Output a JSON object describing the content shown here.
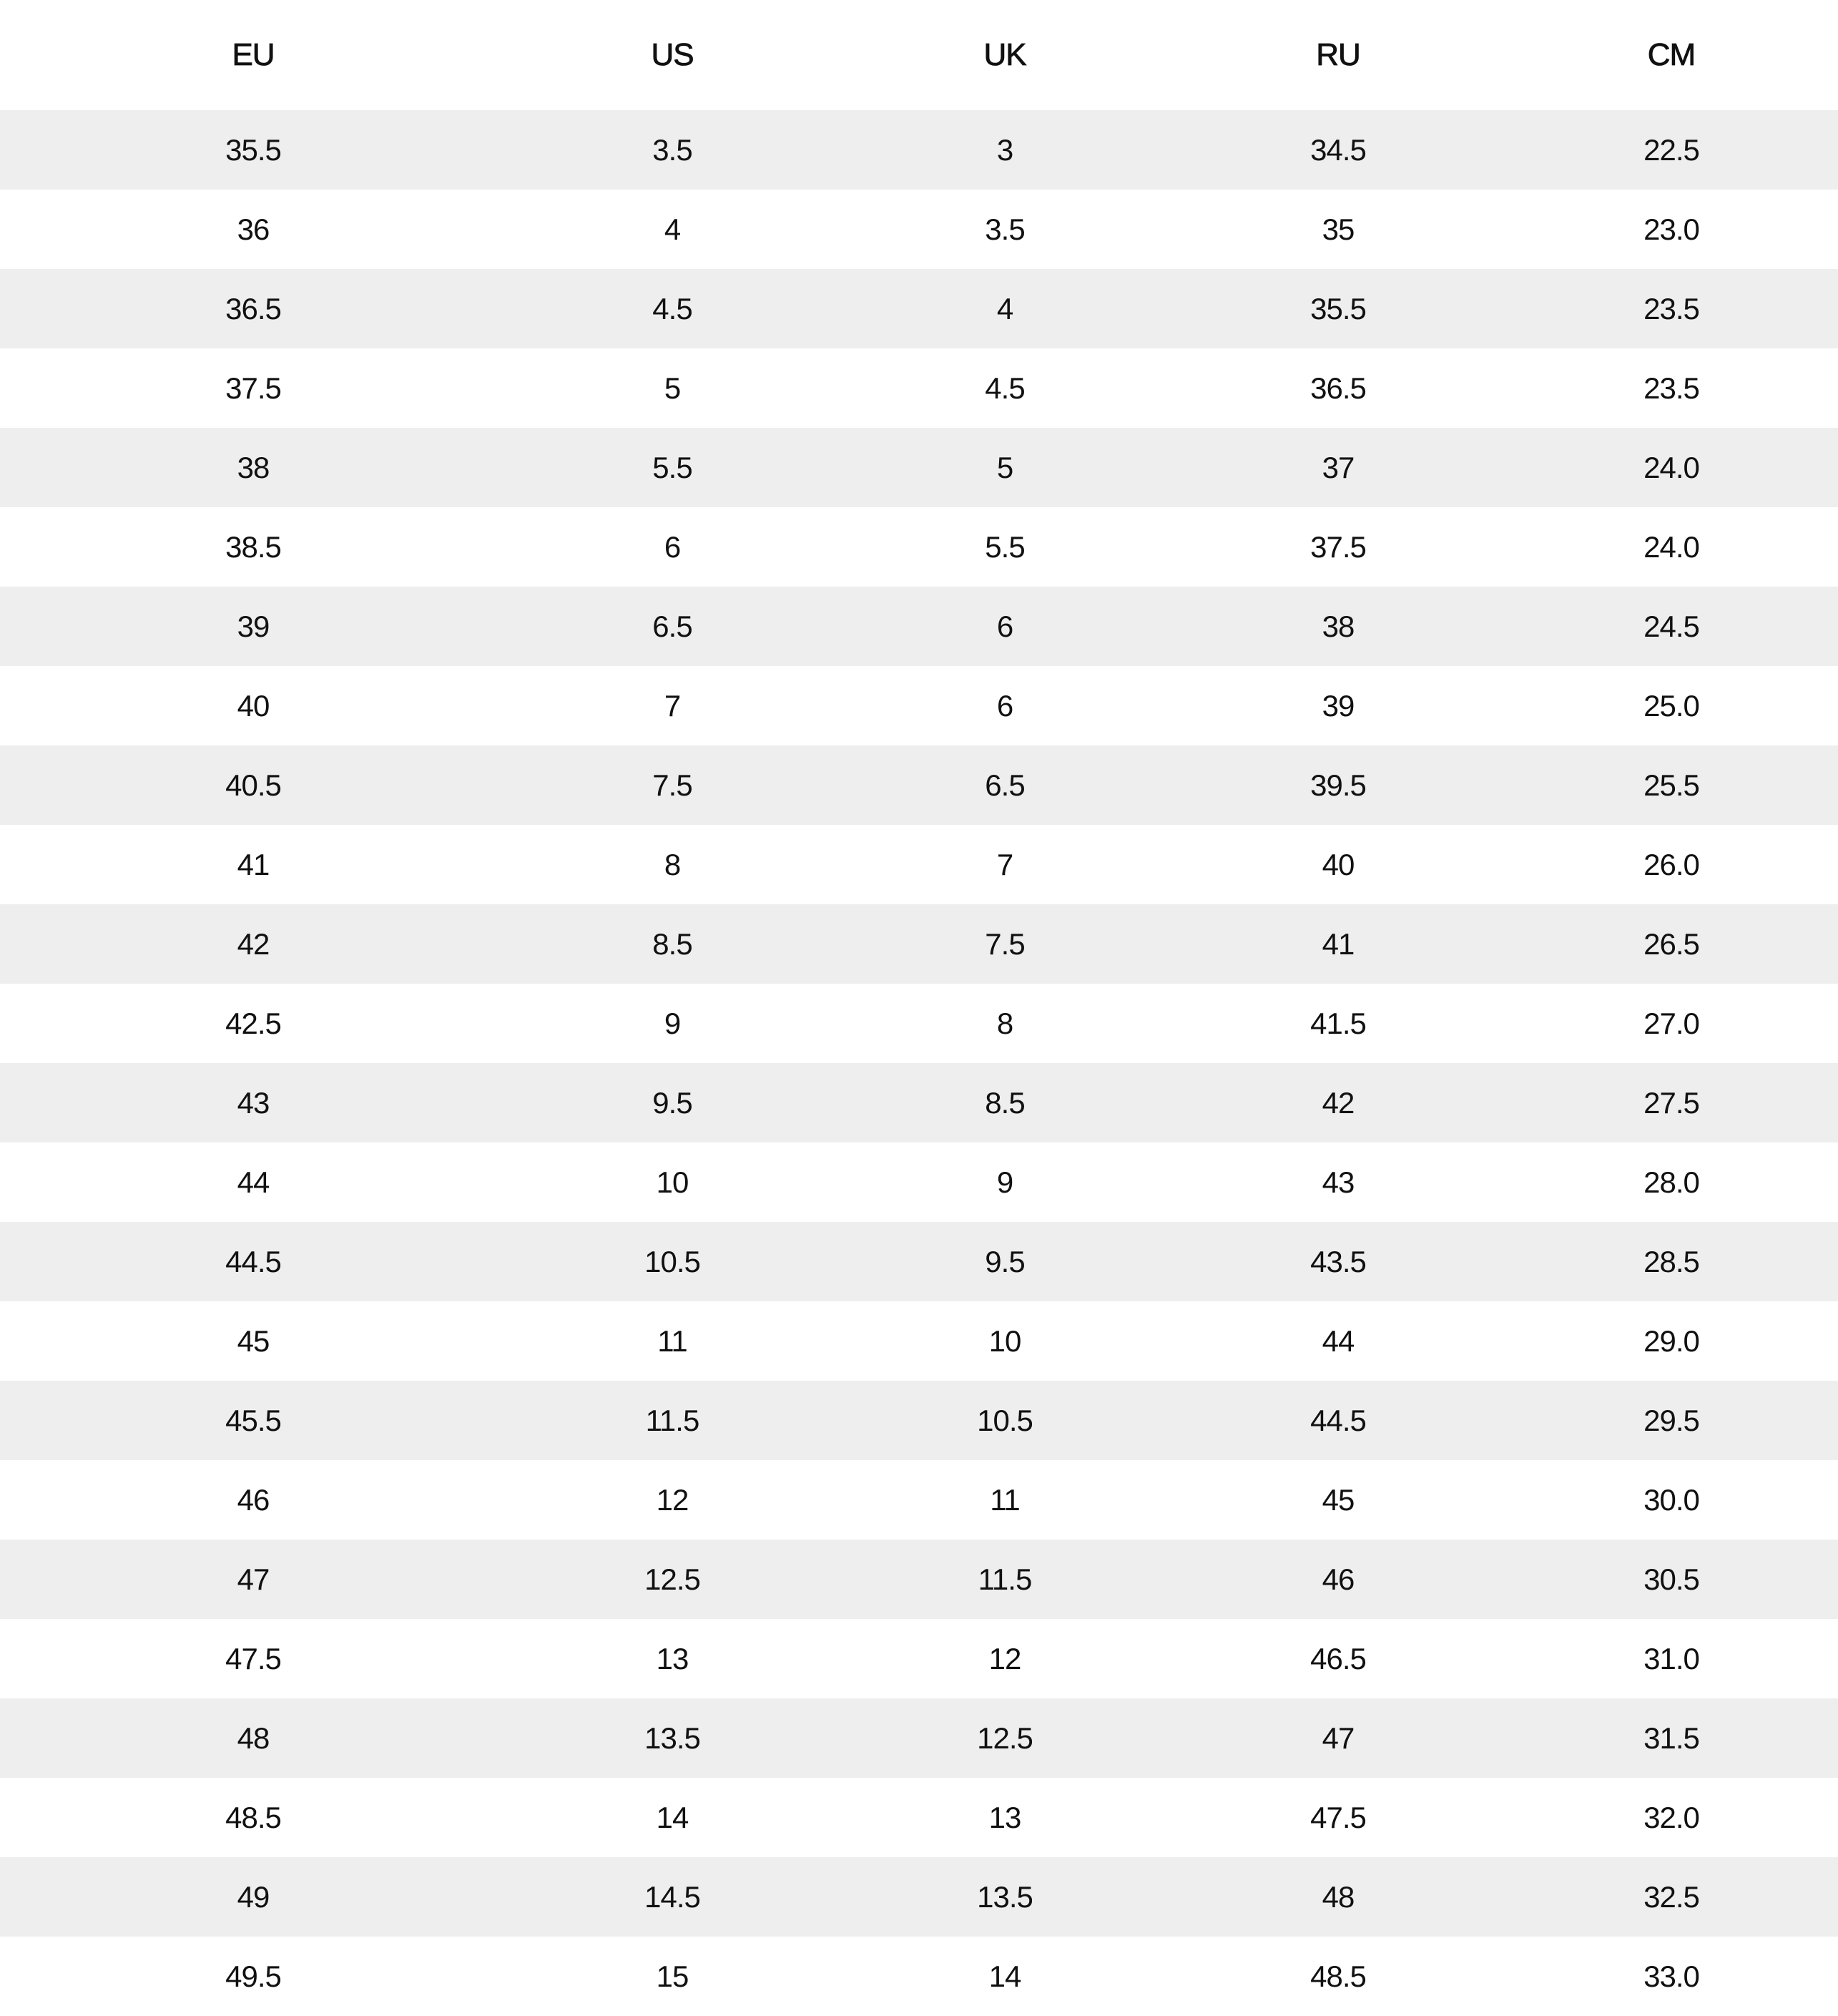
{
  "headers": [
    "EU",
    "US",
    "UK",
    "RU",
    "CM"
  ],
  "rows": [
    [
      "35.5",
      "3.5",
      "3",
      "34.5",
      "22.5"
    ],
    [
      "36",
      "4",
      "3.5",
      "35",
      "23.0"
    ],
    [
      "36.5",
      "4.5",
      "4",
      "35.5",
      "23.5"
    ],
    [
      "37.5",
      "5",
      "4.5",
      "36.5",
      "23.5"
    ],
    [
      "38",
      "5.5",
      "5",
      "37",
      "24.0"
    ],
    [
      "38.5",
      "6",
      "5.5",
      "37.5",
      "24.0"
    ],
    [
      "39",
      "6.5",
      "6",
      "38",
      "24.5"
    ],
    [
      "40",
      "7",
      "6",
      "39",
      "25.0"
    ],
    [
      "40.5",
      "7.5",
      "6.5",
      "39.5",
      "25.5"
    ],
    [
      "41",
      "8",
      "7",
      "40",
      "26.0"
    ],
    [
      "42",
      "8.5",
      "7.5",
      "41",
      "26.5"
    ],
    [
      "42.5",
      "9",
      "8",
      "41.5",
      "27.0"
    ],
    [
      "43",
      "9.5",
      "8.5",
      "42",
      "27.5"
    ],
    [
      "44",
      "10",
      "9",
      "43",
      "28.0"
    ],
    [
      "44.5",
      "10.5",
      "9.5",
      "43.5",
      "28.5"
    ],
    [
      "45",
      "11",
      "10",
      "44",
      "29.0"
    ],
    [
      "45.5",
      "11.5",
      "10.5",
      "44.5",
      "29.5"
    ],
    [
      "46",
      "12",
      "11",
      "45",
      "30.0"
    ],
    [
      "47",
      "12.5",
      "11.5",
      "46",
      "30.5"
    ],
    [
      "47.5",
      "13",
      "12",
      "46.5",
      "31.0"
    ],
    [
      "48",
      "13.5",
      "12.5",
      "47",
      "31.5"
    ],
    [
      "48.5",
      "14",
      "13",
      "47.5",
      "32.0"
    ],
    [
      "49",
      "14.5",
      "13.5",
      "48",
      "32.5"
    ],
    [
      "49.5",
      "15",
      "14",
      "48.5",
      "33.0"
    ]
  ],
  "colors": {
    "stripe": "#eeeeee",
    "background": "#ffffff",
    "text": "#111111"
  }
}
